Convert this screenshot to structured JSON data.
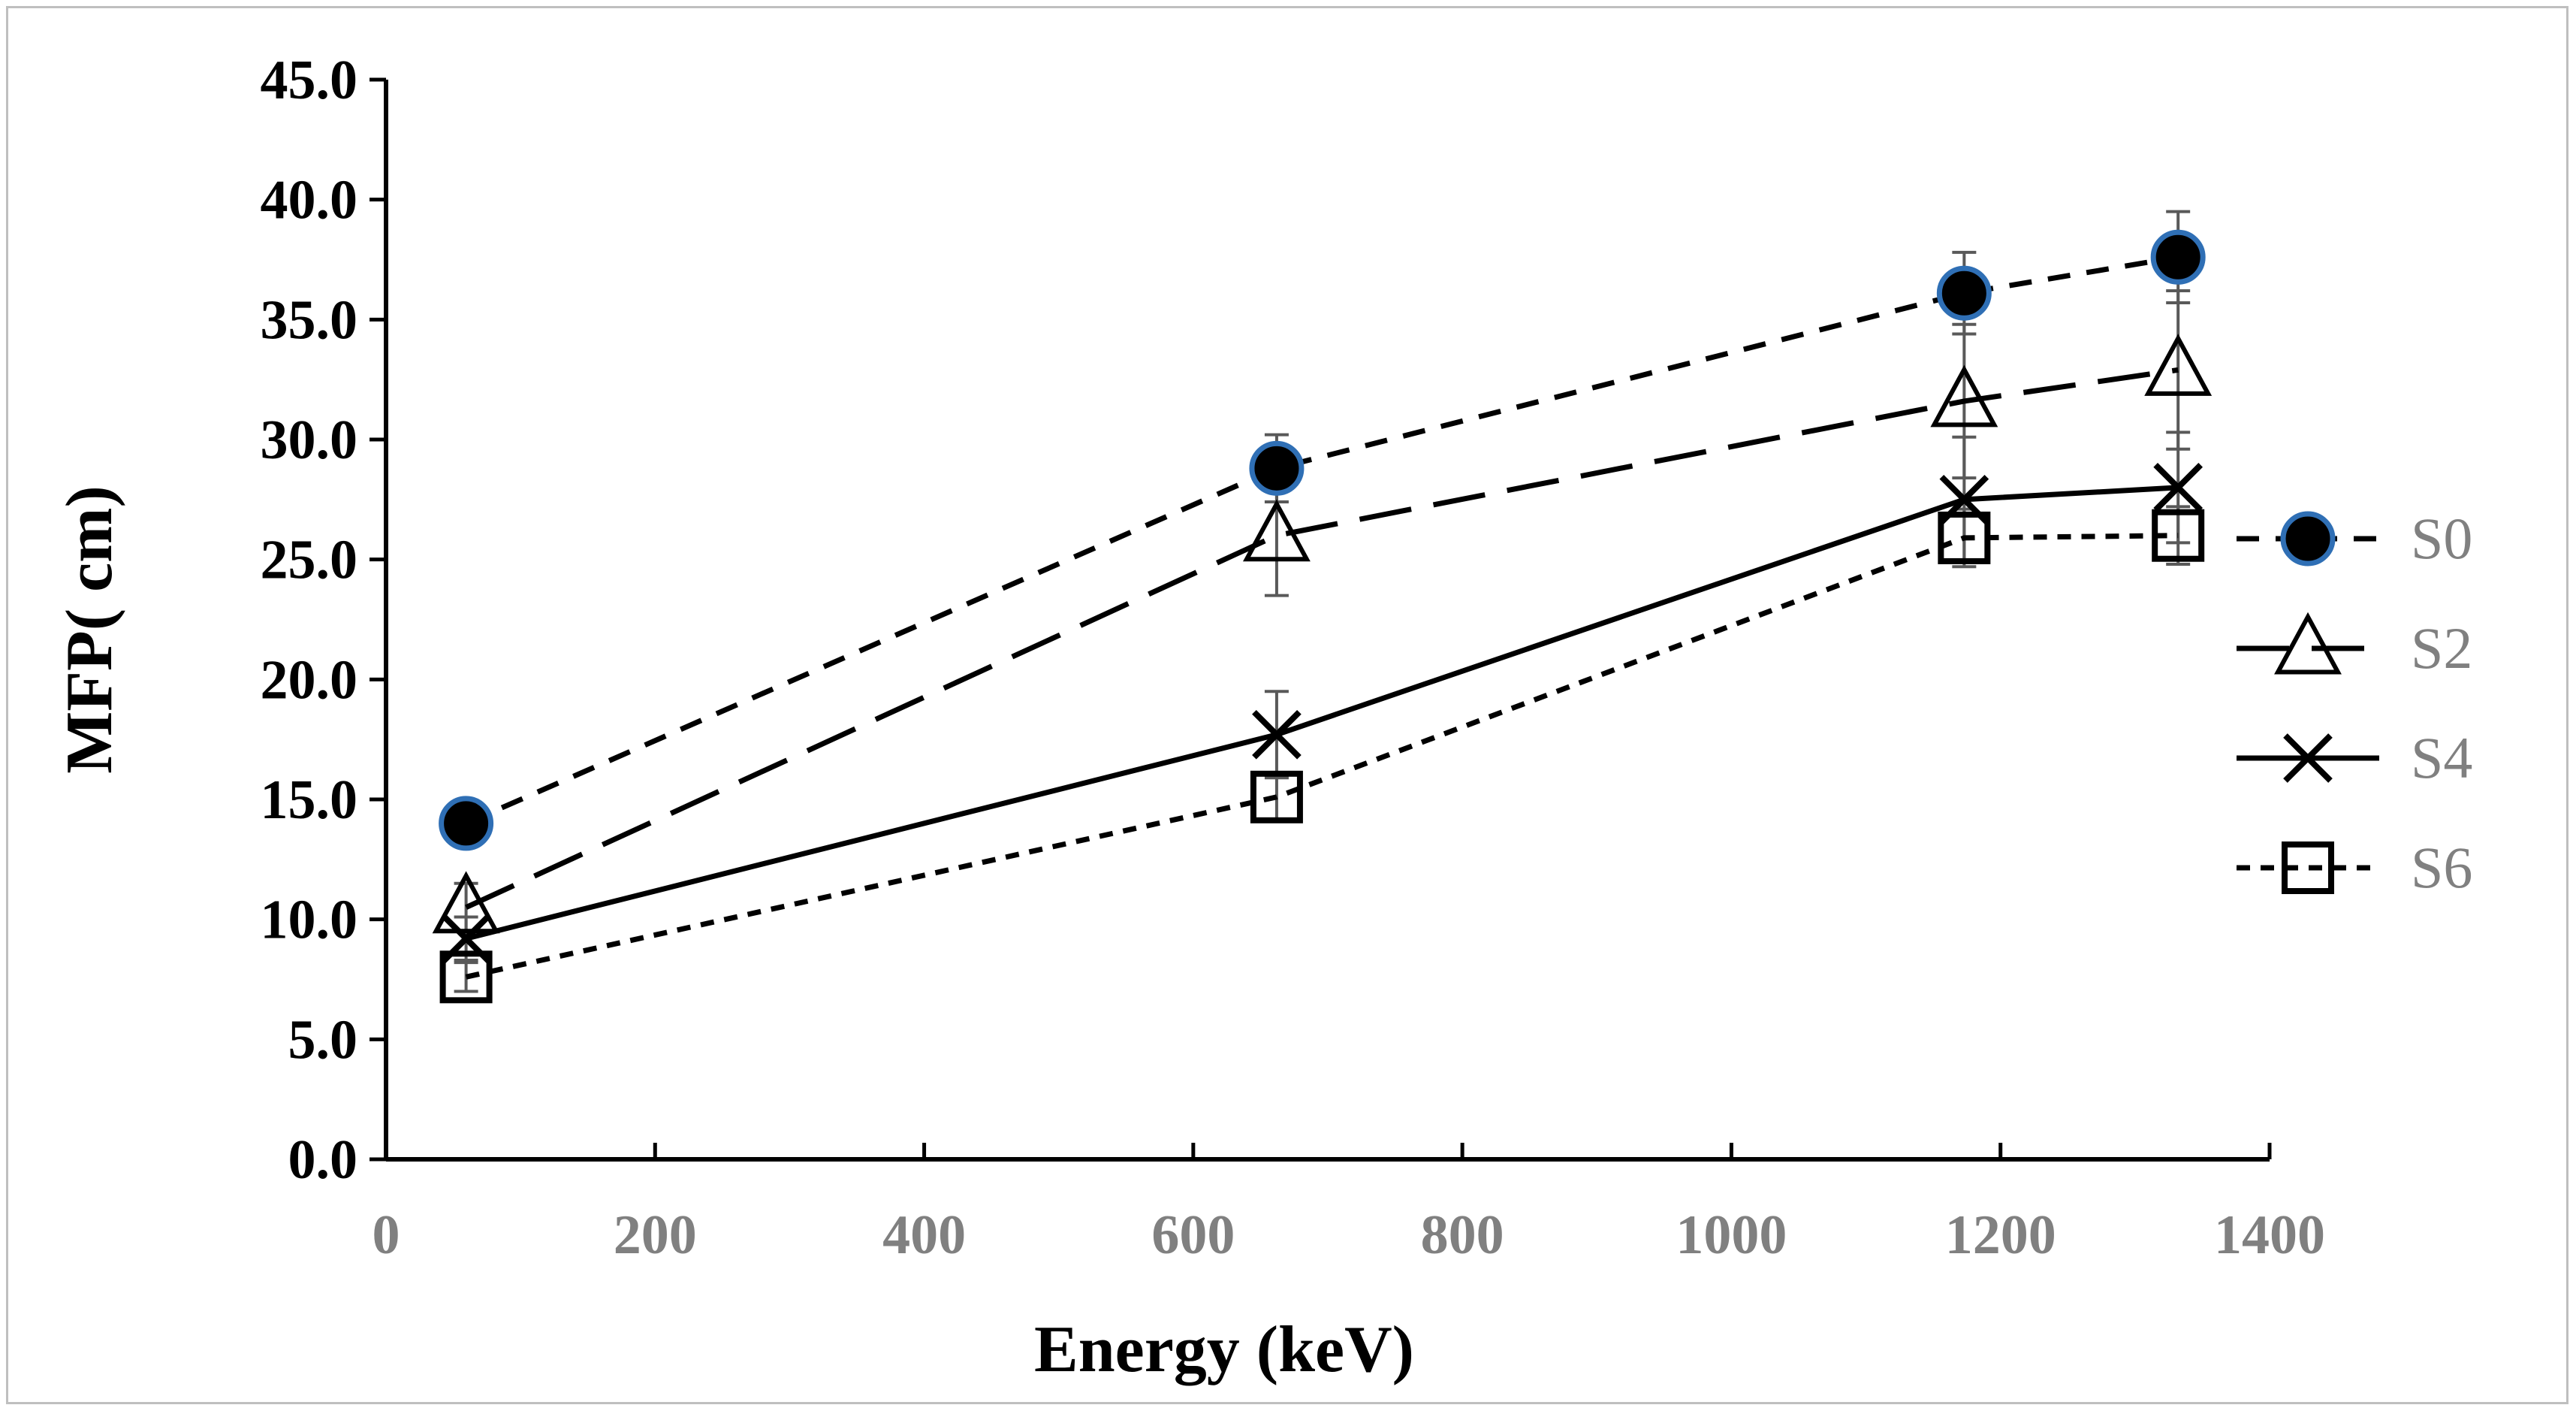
{
  "chart_data": {
    "type": "line",
    "xlabel": "Energy (keV)",
    "ylabel": "MFP( cm)",
    "xlim": [
      0,
      1400
    ],
    "ylim": [
      0,
      45
    ],
    "x_ticks": [
      "0",
      "200",
      "400",
      "600",
      "800",
      "1000",
      "1200",
      "1400"
    ],
    "y_ticks": [
      "0.0",
      "5.0",
      "10.0",
      "15.0",
      "20.0",
      "25.0",
      "30.0",
      "35.0",
      "40.0",
      "45.0"
    ],
    "x": [
      59.5,
      662,
      1173,
      1332
    ],
    "series": [
      {
        "name": "S0",
        "values": [
          14.0,
          28.8,
          36.1,
          37.6
        ],
        "errors": [
          0.4,
          1.4,
          1.7,
          1.9
        ],
        "marker": "circle-filled",
        "line": "short-dash"
      },
      {
        "name": "S2",
        "values": [
          10.5,
          26.0,
          31.6,
          32.9
        ],
        "errors": [
          1.0,
          2.5,
          3.2,
          3.3
        ],
        "marker": "triangle-open",
        "line": "long-dash"
      },
      {
        "name": "S4",
        "values": [
          9.2,
          17.7,
          27.5,
          28.0
        ],
        "errors": [
          0.9,
          1.8,
          2.6,
          2.3
        ],
        "marker": "x",
        "line": "solid"
      },
      {
        "name": "S6",
        "values": [
          7.6,
          15.1,
          25.9,
          26.0
        ],
        "errors": [
          0.6,
          1.0,
          1.2,
          1.2
        ],
        "marker": "square-open",
        "line": "dotted"
      }
    ],
    "legend_position": "right",
    "grid": false,
    "colors": {
      "line": "#000000",
      "error_bar": "#595959",
      "tick_label_x": "#808080",
      "legend_text": "#808080",
      "s0_marker_edge": "#2f6fb5"
    }
  }
}
